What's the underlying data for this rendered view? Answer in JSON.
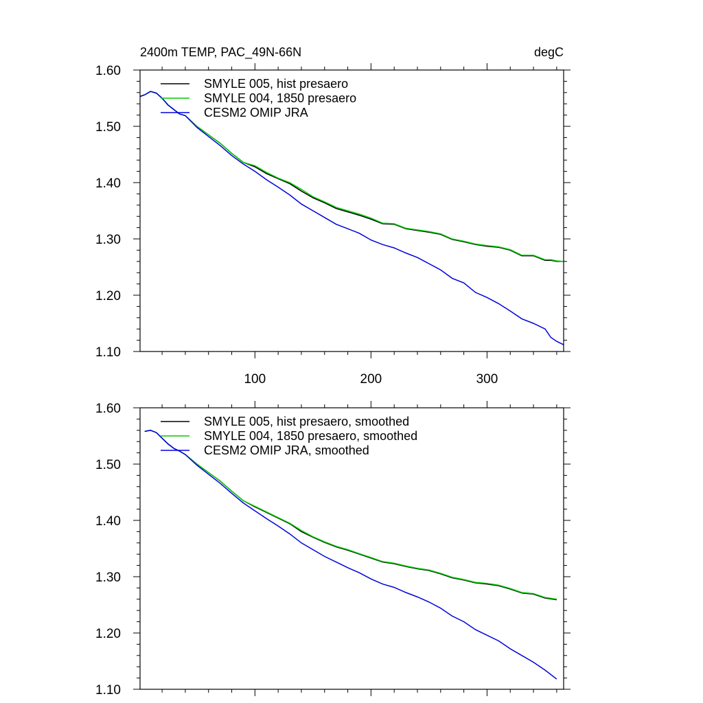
{
  "chart_data": [
    {
      "type": "line",
      "title_left": "2400m TEMP, PAC_49N-66N",
      "title_right": "degC",
      "xlim": [
        1,
        366
      ],
      "ylim": [
        1.1,
        1.6
      ],
      "x_ticks": [
        100,
        200,
        300
      ],
      "x_tick_labels": [
        "100",
        "200",
        "300"
      ],
      "y_ticks": [
        1.1,
        1.2,
        1.3,
        1.4,
        1.5,
        1.6
      ],
      "y_tick_labels": [
        "1.10",
        "1.20",
        "1.30",
        "1.40",
        "1.50",
        "1.60"
      ],
      "legend_position": "top-left",
      "x": [
        1,
        5,
        10,
        15,
        20,
        25,
        30,
        35,
        40,
        50,
        60,
        70,
        80,
        90,
        100,
        110,
        120,
        130,
        140,
        150,
        160,
        170,
        180,
        190,
        200,
        210,
        220,
        230,
        240,
        250,
        260,
        270,
        280,
        290,
        300,
        310,
        320,
        330,
        340,
        350,
        355,
        360,
        366
      ],
      "series": [
        {
          "name": "SMYLE 005, hist presaero",
          "color": "#000000",
          "values": [
            1.553,
            1.556,
            1.562,
            1.559,
            1.55,
            1.538,
            1.53,
            1.522,
            1.519,
            1.5,
            1.485,
            1.47,
            1.452,
            1.436,
            1.428,
            1.416,
            1.407,
            1.398,
            1.385,
            1.373,
            1.364,
            1.354,
            1.348,
            1.342,
            1.335,
            1.327,
            1.326,
            1.318,
            1.315,
            1.312,
            1.308,
            1.299,
            1.295,
            1.29,
            1.287,
            1.285,
            1.28,
            1.27,
            1.27,
            1.262,
            1.262,
            1.26,
            1.26
          ]
        },
        {
          "name": "SMYLE 004, 1850 presaero",
          "color": "#00cc00",
          "values": [
            1.553,
            1.556,
            1.562,
            1.559,
            1.55,
            1.538,
            1.53,
            1.522,
            1.519,
            1.5,
            1.485,
            1.47,
            1.452,
            1.436,
            1.43,
            1.418,
            1.408,
            1.4,
            1.388,
            1.375,
            1.366,
            1.356,
            1.35,
            1.344,
            1.337,
            1.328,
            1.327,
            1.319,
            1.316,
            1.313,
            1.309,
            1.3,
            1.296,
            1.291,
            1.288,
            1.286,
            1.281,
            1.271,
            1.271,
            1.263,
            1.263,
            1.261,
            1.26
          ]
        },
        {
          "name": "CESM2 OMIP JRA",
          "color": "#0000dd",
          "values": [
            1.553,
            1.556,
            1.562,
            1.559,
            1.55,
            1.538,
            1.53,
            1.522,
            1.519,
            1.498,
            1.482,
            1.466,
            1.448,
            1.433,
            1.42,
            1.405,
            1.392,
            1.378,
            1.362,
            1.35,
            1.338,
            1.326,
            1.318,
            1.31,
            1.298,
            1.29,
            1.284,
            1.275,
            1.267,
            1.256,
            1.245,
            1.23,
            1.222,
            1.205,
            1.196,
            1.185,
            1.172,
            1.158,
            1.15,
            1.14,
            1.125,
            1.118,
            1.112
          ]
        }
      ]
    },
    {
      "type": "line",
      "xlim": [
        1,
        366
      ],
      "ylim": [
        1.1,
        1.6
      ],
      "x_ticks": [
        100,
        200,
        300
      ],
      "y_ticks": [
        1.1,
        1.2,
        1.3,
        1.4,
        1.5,
        1.6
      ],
      "y_tick_labels": [
        "1.10",
        "1.20",
        "1.30",
        "1.40",
        "1.50",
        "1.60"
      ],
      "legend_position": "top-left",
      "x": [
        5,
        10,
        15,
        20,
        25,
        30,
        35,
        40,
        50,
        60,
        70,
        80,
        90,
        100,
        110,
        120,
        130,
        140,
        150,
        160,
        170,
        180,
        190,
        200,
        210,
        220,
        230,
        240,
        250,
        260,
        270,
        280,
        290,
        300,
        310,
        320,
        330,
        340,
        350,
        360
      ],
      "series": [
        {
          "name": "SMYLE 005, hist presaero, smoothed",
          "color": "#000000",
          "values": [
            1.558,
            1.56,
            1.556,
            1.546,
            1.536,
            1.528,
            1.523,
            1.517,
            1.5,
            1.485,
            1.47,
            1.452,
            1.435,
            1.424,
            1.414,
            1.404,
            1.394,
            1.38,
            1.37,
            1.361,
            1.353,
            1.347,
            1.34,
            1.333,
            1.326,
            1.323,
            1.318,
            1.314,
            1.311,
            1.305,
            1.298,
            1.294,
            1.289,
            1.287,
            1.284,
            1.278,
            1.271,
            1.269,
            1.262,
            1.259
          ]
        },
        {
          "name": "SMYLE 004, 1850 presaero, smoothed",
          "color": "#00cc00",
          "values": [
            1.558,
            1.56,
            1.556,
            1.546,
            1.536,
            1.528,
            1.523,
            1.517,
            1.5,
            1.485,
            1.47,
            1.452,
            1.435,
            1.425,
            1.415,
            1.405,
            1.395,
            1.382,
            1.371,
            1.362,
            1.354,
            1.348,
            1.341,
            1.334,
            1.327,
            1.324,
            1.319,
            1.315,
            1.312,
            1.306,
            1.299,
            1.295,
            1.29,
            1.288,
            1.285,
            1.279,
            1.272,
            1.27,
            1.263,
            1.26
          ]
        },
        {
          "name": "CESM2 OMIP JRA, smoothed",
          "color": "#0000dd",
          "values": [
            1.558,
            1.56,
            1.556,
            1.546,
            1.536,
            1.528,
            1.523,
            1.517,
            1.498,
            1.482,
            1.466,
            1.448,
            1.431,
            1.417,
            1.403,
            1.39,
            1.376,
            1.36,
            1.348,
            1.336,
            1.326,
            1.316,
            1.307,
            1.296,
            1.287,
            1.281,
            1.272,
            1.264,
            1.255,
            1.244,
            1.23,
            1.22,
            1.206,
            1.196,
            1.186,
            1.172,
            1.16,
            1.148,
            1.134,
            1.118
          ]
        }
      ]
    }
  ]
}
